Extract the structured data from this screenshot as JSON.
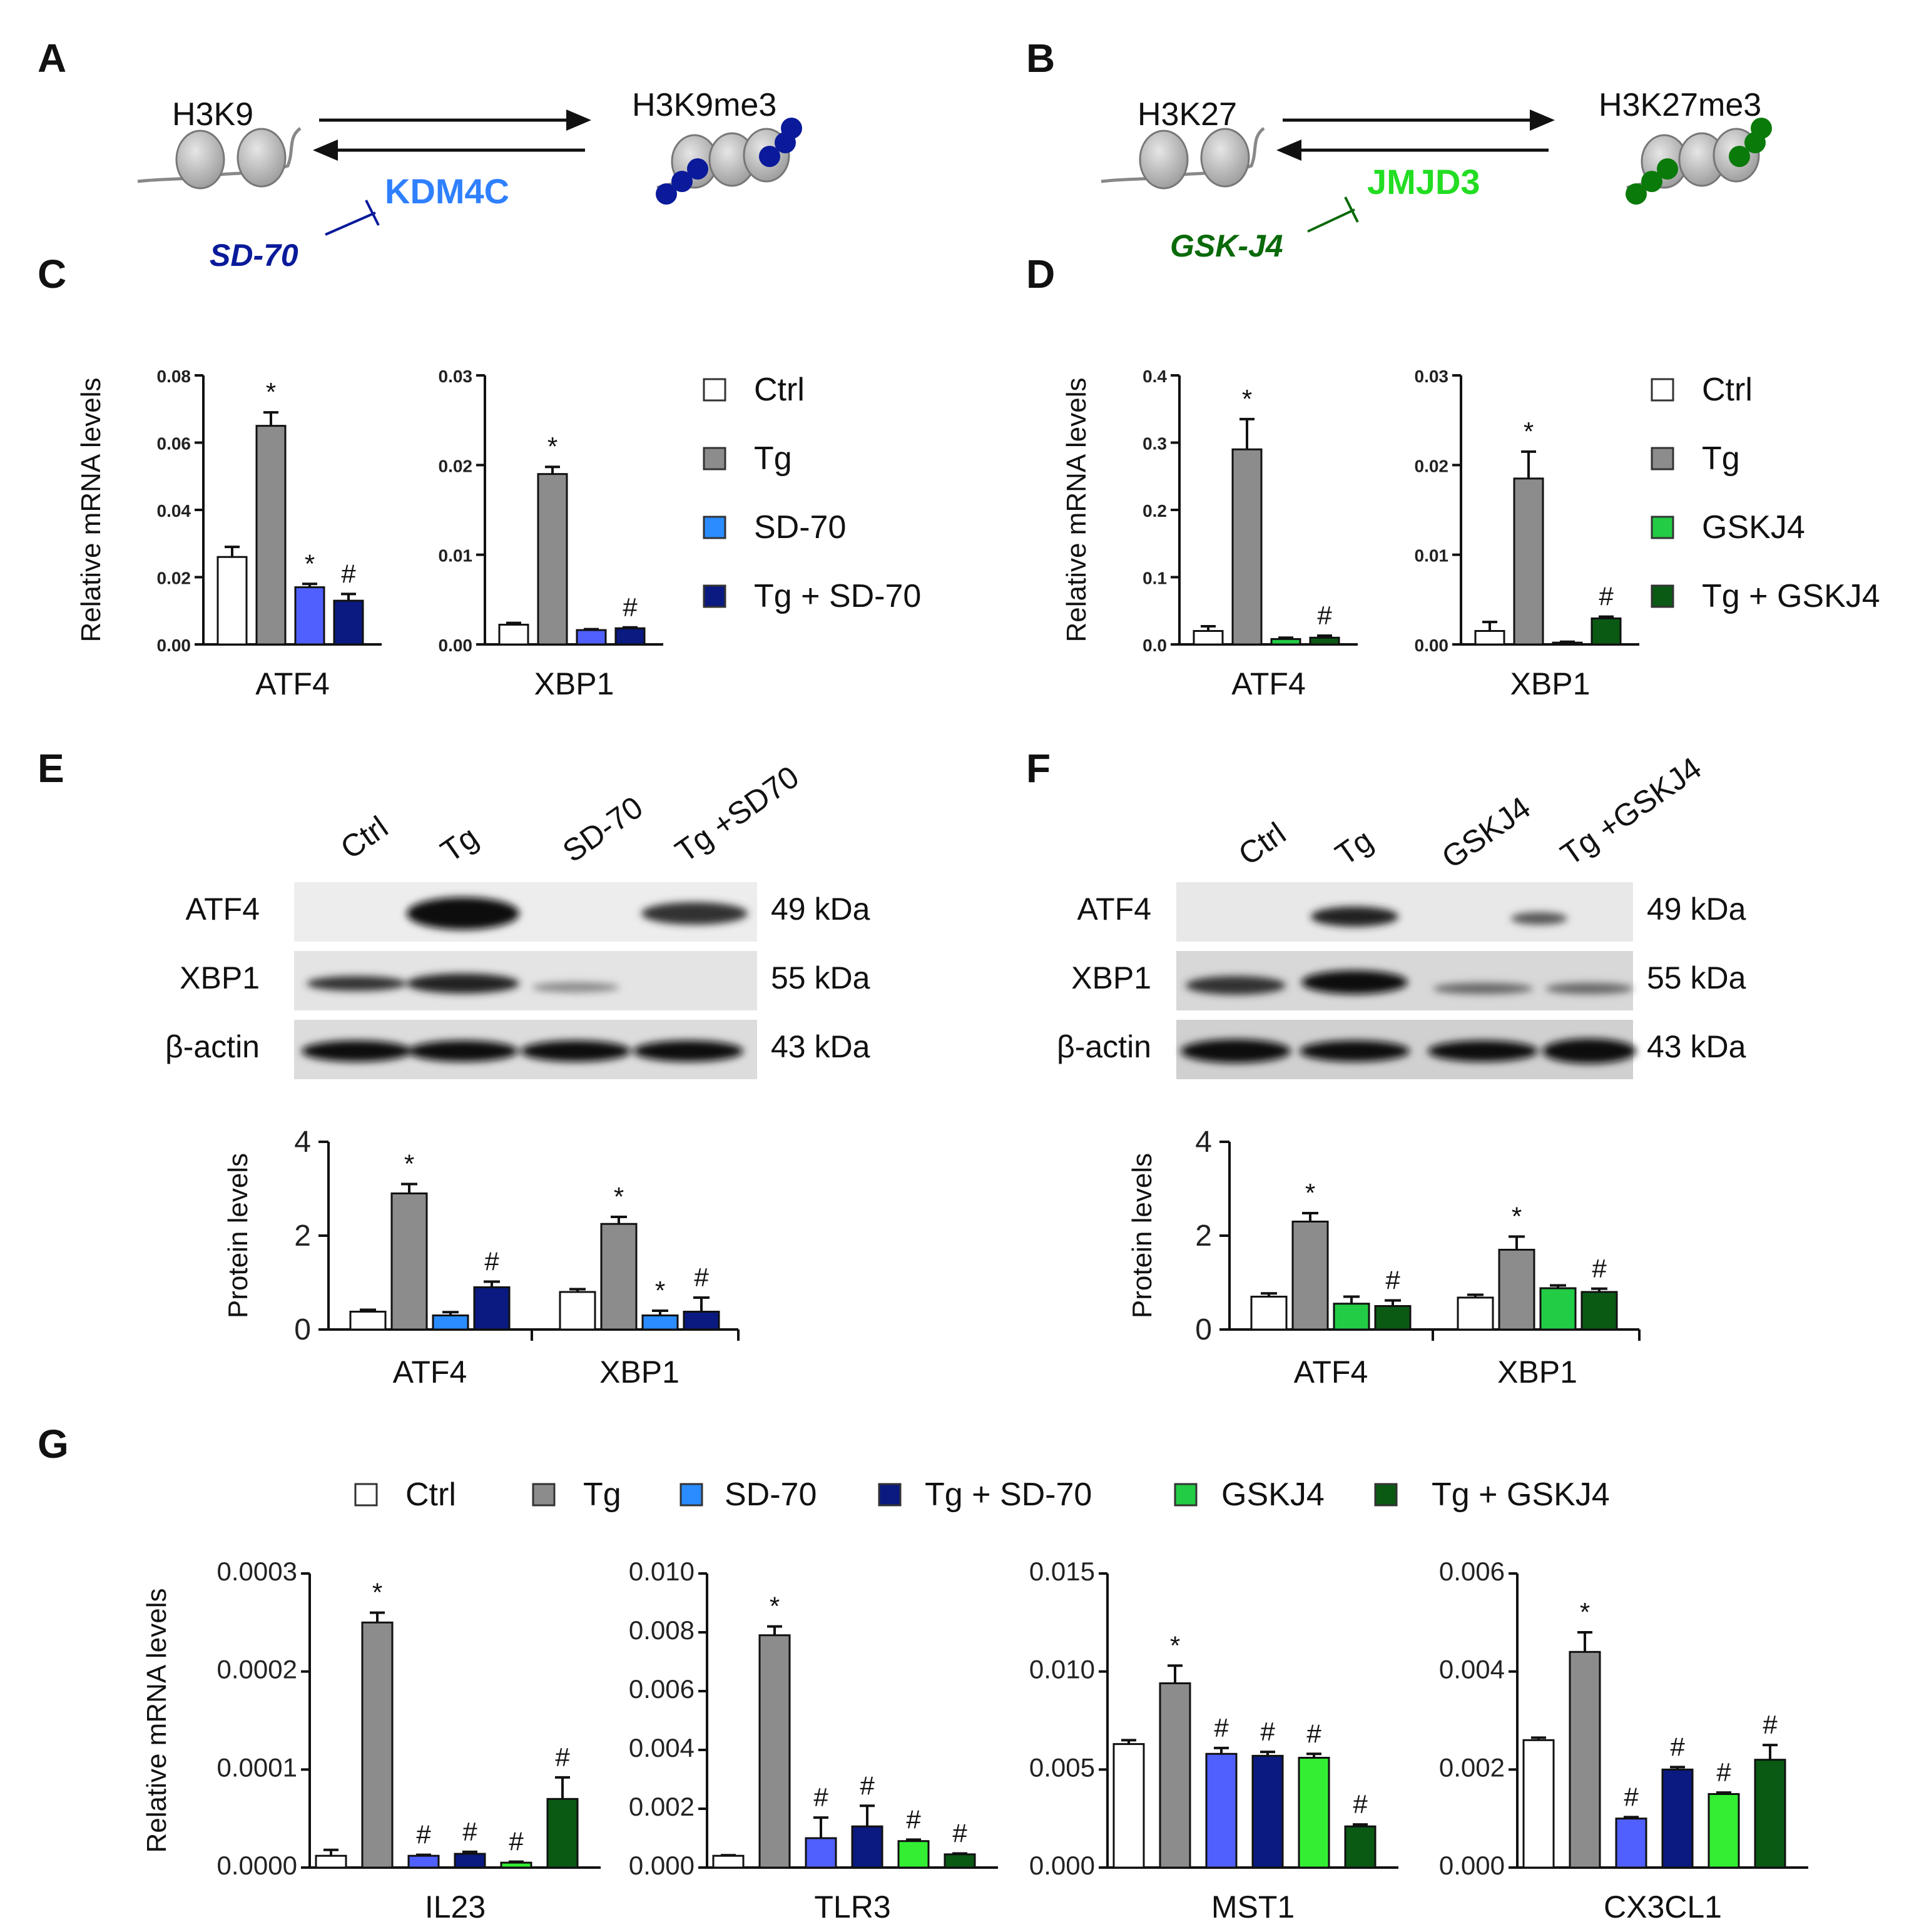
{
  "panels": {
    "A": {
      "letter": "A",
      "left_label": "H3K9",
      "right_label": "H3K9me3",
      "enzyme": "KDM4C",
      "inhibitor": "SD-70",
      "enzyme_color": "#2f80ff",
      "inhibitor_color": "#0a1a9a",
      "mark_color": "#0a1a9a"
    },
    "B": {
      "letter": "B",
      "left_label": "H3K27",
      "right_label": "H3K27me3",
      "enzyme": "JMJD3",
      "inhibitor": "GSK-J4",
      "enzyme_color": "#22dd22",
      "inhibitor_color": "#0a6a0a",
      "mark_color": "#0a7a0a"
    },
    "C": {
      "letter": "C"
    },
    "D": {
      "letter": "D"
    },
    "E": {
      "letter": "E"
    },
    "F": {
      "letter": "F"
    },
    "G": {
      "letter": "G"
    }
  },
  "legends": {
    "C": [
      "Ctrl",
      "Tg",
      "SD-70",
      "Tg + SD-70"
    ],
    "D": [
      "Ctrl",
      "Tg",
      "GSKJ4",
      "Tg + GSKJ4"
    ],
    "G": [
      "Ctrl",
      "Tg",
      "SD-70",
      "Tg + SD-70",
      "GSKJ4",
      "Tg + GSKJ4"
    ]
  },
  "blots": {
    "E": {
      "lanes": [
        "Ctrl",
        "Tg",
        "SD-70",
        "Tg +SD70"
      ],
      "rows": [
        "ATF4",
        "XBP1",
        "β-actin"
      ],
      "sizes": [
        "49 kDa",
        "55 kDa",
        "43 kDa"
      ]
    },
    "F": {
      "lanes": [
        "Ctrl",
        "Tg",
        "GSKJ4",
        "Tg +GSKJ4"
      ],
      "rows": [
        "ATF4",
        "XBP1",
        "β-actin"
      ],
      "sizes": [
        "49 kDa",
        "55 kDa",
        "43 kDa"
      ]
    }
  },
  "colors": {
    "Ctrl": "#ffffff",
    "Tg": "#8c8c8c",
    "SD-70": "#5060ff",
    "SD-70-E": "#2a8cff",
    "Tg + SD-70": "#0a1a80",
    "GSKJ4": "#22cc44",
    "GSKJ4-G": "#33ee33",
    "Tg + GSKJ4": "#0a5a14"
  },
  "chart_data": [
    {
      "id": "C-ATF4",
      "type": "bar",
      "categories": [
        "Ctrl",
        "Tg",
        "SD-70",
        "Tg + SD-70"
      ],
      "values": [
        0.026,
        0.065,
        0.017,
        0.013
      ],
      "errors": [
        0.003,
        0.004,
        0.001,
        0.002
      ],
      "marks": [
        "",
        "*",
        "*",
        "#"
      ],
      "xlabel": "ATF4",
      "ylabel": "Relative mRNA levels",
      "ylim": [
        0,
        0.08
      ],
      "yticks": [
        "0.00",
        "0.02",
        "0.04",
        "0.06",
        "0.08"
      ]
    },
    {
      "id": "C-XBP1",
      "type": "bar",
      "categories": [
        "Ctrl",
        "Tg",
        "SD-70",
        "Tg + SD-70"
      ],
      "values": [
        0.0022,
        0.019,
        0.0016,
        0.0018
      ],
      "errors": [
        0.0002,
        0.0008,
        0.0001,
        0.0001
      ],
      "marks": [
        "",
        "*",
        "",
        "#"
      ],
      "xlabel": "XBP1",
      "ylim": [
        0,
        0.03
      ],
      "yticks": [
        "0.00",
        "0.01",
        "0.02",
        "0.03"
      ]
    },
    {
      "id": "D-ATF4",
      "type": "bar",
      "categories": [
        "Ctrl",
        "Tg",
        "GSKJ4",
        "Tg + GSKJ4"
      ],
      "values": [
        0.02,
        0.29,
        0.008,
        0.01
      ],
      "errors": [
        0.007,
        0.045,
        0.002,
        0.003
      ],
      "marks": [
        "",
        "*",
        "",
        "#"
      ],
      "xlabel": "ATF4",
      "ylabel": "Relative mRNA levels",
      "ylim": [
        0,
        0.4
      ],
      "yticks": [
        "0.0",
        "0.1",
        "0.2",
        "0.3",
        "0.4"
      ]
    },
    {
      "id": "D-XBP1",
      "type": "bar",
      "categories": [
        "Ctrl",
        "Tg",
        "GSKJ4",
        "Tg + GSKJ4"
      ],
      "values": [
        0.0015,
        0.0185,
        0.0002,
        0.0029
      ],
      "errors": [
        0.001,
        0.003,
        0.0001,
        0.0002
      ],
      "marks": [
        "",
        "*",
        "",
        "#"
      ],
      "xlabel": "XBP1",
      "ylim": [
        0,
        0.03
      ],
      "yticks": [
        "0.00",
        "0.01",
        "0.02",
        "0.03"
      ]
    },
    {
      "id": "E-protein",
      "type": "bar",
      "groups": [
        "ATF4",
        "XBP1"
      ],
      "categories": [
        "Ctrl",
        "Tg",
        "SD-70",
        "Tg + SD-70"
      ],
      "values": [
        [
          0.38,
          2.9,
          0.3,
          0.9
        ],
        [
          0.8,
          2.25,
          0.3,
          0.38
        ]
      ],
      "errors": [
        [
          0.04,
          0.2,
          0.07,
          0.12
        ],
        [
          0.06,
          0.15,
          0.1,
          0.3
        ]
      ],
      "marks": [
        [
          "",
          "*",
          "",
          "#"
        ],
        [
          "",
          "*",
          "*",
          "#"
        ]
      ],
      "ylabel": "Protein levels",
      "ylim": [
        0,
        4
      ],
      "yticks": [
        "0",
        "2",
        "4"
      ]
    },
    {
      "id": "F-protein",
      "type": "bar",
      "groups": [
        "ATF4",
        "XBP1"
      ],
      "categories": [
        "Ctrl",
        "Tg",
        "GSKJ4",
        "Tg + GSKJ4"
      ],
      "values": [
        [
          0.7,
          2.3,
          0.55,
          0.5
        ],
        [
          0.68,
          1.7,
          0.88,
          0.8
        ]
      ],
      "errors": [
        [
          0.07,
          0.18,
          0.15,
          0.12
        ],
        [
          0.06,
          0.28,
          0.06,
          0.07
        ]
      ],
      "marks": [
        [
          "",
          "*",
          "",
          "#"
        ],
        [
          "",
          "*",
          "",
          "#"
        ]
      ],
      "ylabel": "Protein levels",
      "ylim": [
        0,
        4
      ],
      "yticks": [
        "0",
        "2",
        "4"
      ]
    },
    {
      "id": "G-IL23",
      "type": "bar",
      "categories": [
        "Ctrl",
        "Tg",
        "SD-70",
        "Tg + SD-70",
        "GSKJ4",
        "Tg + GSKJ4"
      ],
      "values": [
        1.2e-05,
        0.00025,
        1.2e-05,
        1.4e-05,
        5e-06,
        7e-05
      ],
      "errors": [
        6e-06,
        1e-05,
        1e-06,
        2e-06,
        1e-06,
        2.2e-05
      ],
      "marks": [
        "",
        "*",
        "#",
        "#",
        "#",
        "#"
      ],
      "xlabel": "IL23",
      "ylabel": "Relative mRNA levels",
      "ylim": [
        0,
        0.0003
      ],
      "yticks": [
        "0.0000",
        "0.0001",
        "0.0002",
        "0.0003"
      ]
    },
    {
      "id": "G-TLR3",
      "type": "bar",
      "categories": [
        "Ctrl",
        "Tg",
        "SD-70",
        "Tg + SD-70",
        "GSKJ4",
        "Tg + GSKJ4"
      ],
      "values": [
        0.0004,
        0.0079,
        0.001,
        0.0014,
        0.0009,
        0.00045
      ],
      "errors": [
        2e-05,
        0.0003,
        0.0007,
        0.0007,
        5e-05,
        3e-05
      ],
      "marks": [
        "",
        "*",
        "#",
        "#",
        "#",
        "#"
      ],
      "xlabel": "TLR3",
      "ylim": [
        0,
        0.01
      ],
      "yticks": [
        "0.000",
        "0.002",
        "0.004",
        "0.006",
        "0.008",
        "0.010"
      ]
    },
    {
      "id": "G-MST1",
      "type": "bar",
      "categories": [
        "Ctrl",
        "Tg",
        "SD-70",
        "Tg + SD-70",
        "GSKJ4",
        "Tg + GSKJ4"
      ],
      "values": [
        0.0063,
        0.0094,
        0.0058,
        0.0057,
        0.0056,
        0.0021
      ],
      "errors": [
        0.0002,
        0.0009,
        0.0003,
        0.0002,
        0.0002,
        0.0001
      ],
      "marks": [
        "",
        "*",
        "#",
        "#",
        "#",
        "#"
      ],
      "xlabel": "MST1",
      "ylim": [
        0,
        0.015
      ],
      "yticks": [
        "0.000",
        "0.005",
        "0.010",
        "0.015"
      ]
    },
    {
      "id": "G-CX3CL1",
      "type": "bar",
      "categories": [
        "Ctrl",
        "Tg",
        "SD-70",
        "Tg + SD-70",
        "GSKJ4",
        "Tg + GSKJ4"
      ],
      "values": [
        0.0026,
        0.0044,
        0.001,
        0.002,
        0.0015,
        0.0022
      ],
      "errors": [
        5e-05,
        0.0004,
        3e-05,
        5e-05,
        3e-05,
        0.0003
      ],
      "marks": [
        "",
        "*",
        "#",
        "#",
        "#",
        "#"
      ],
      "xlabel": "CX3CL1",
      "ylim": [
        0,
        0.006
      ],
      "yticks": [
        "0.000",
        "0.002",
        "0.004",
        "0.006"
      ]
    }
  ]
}
